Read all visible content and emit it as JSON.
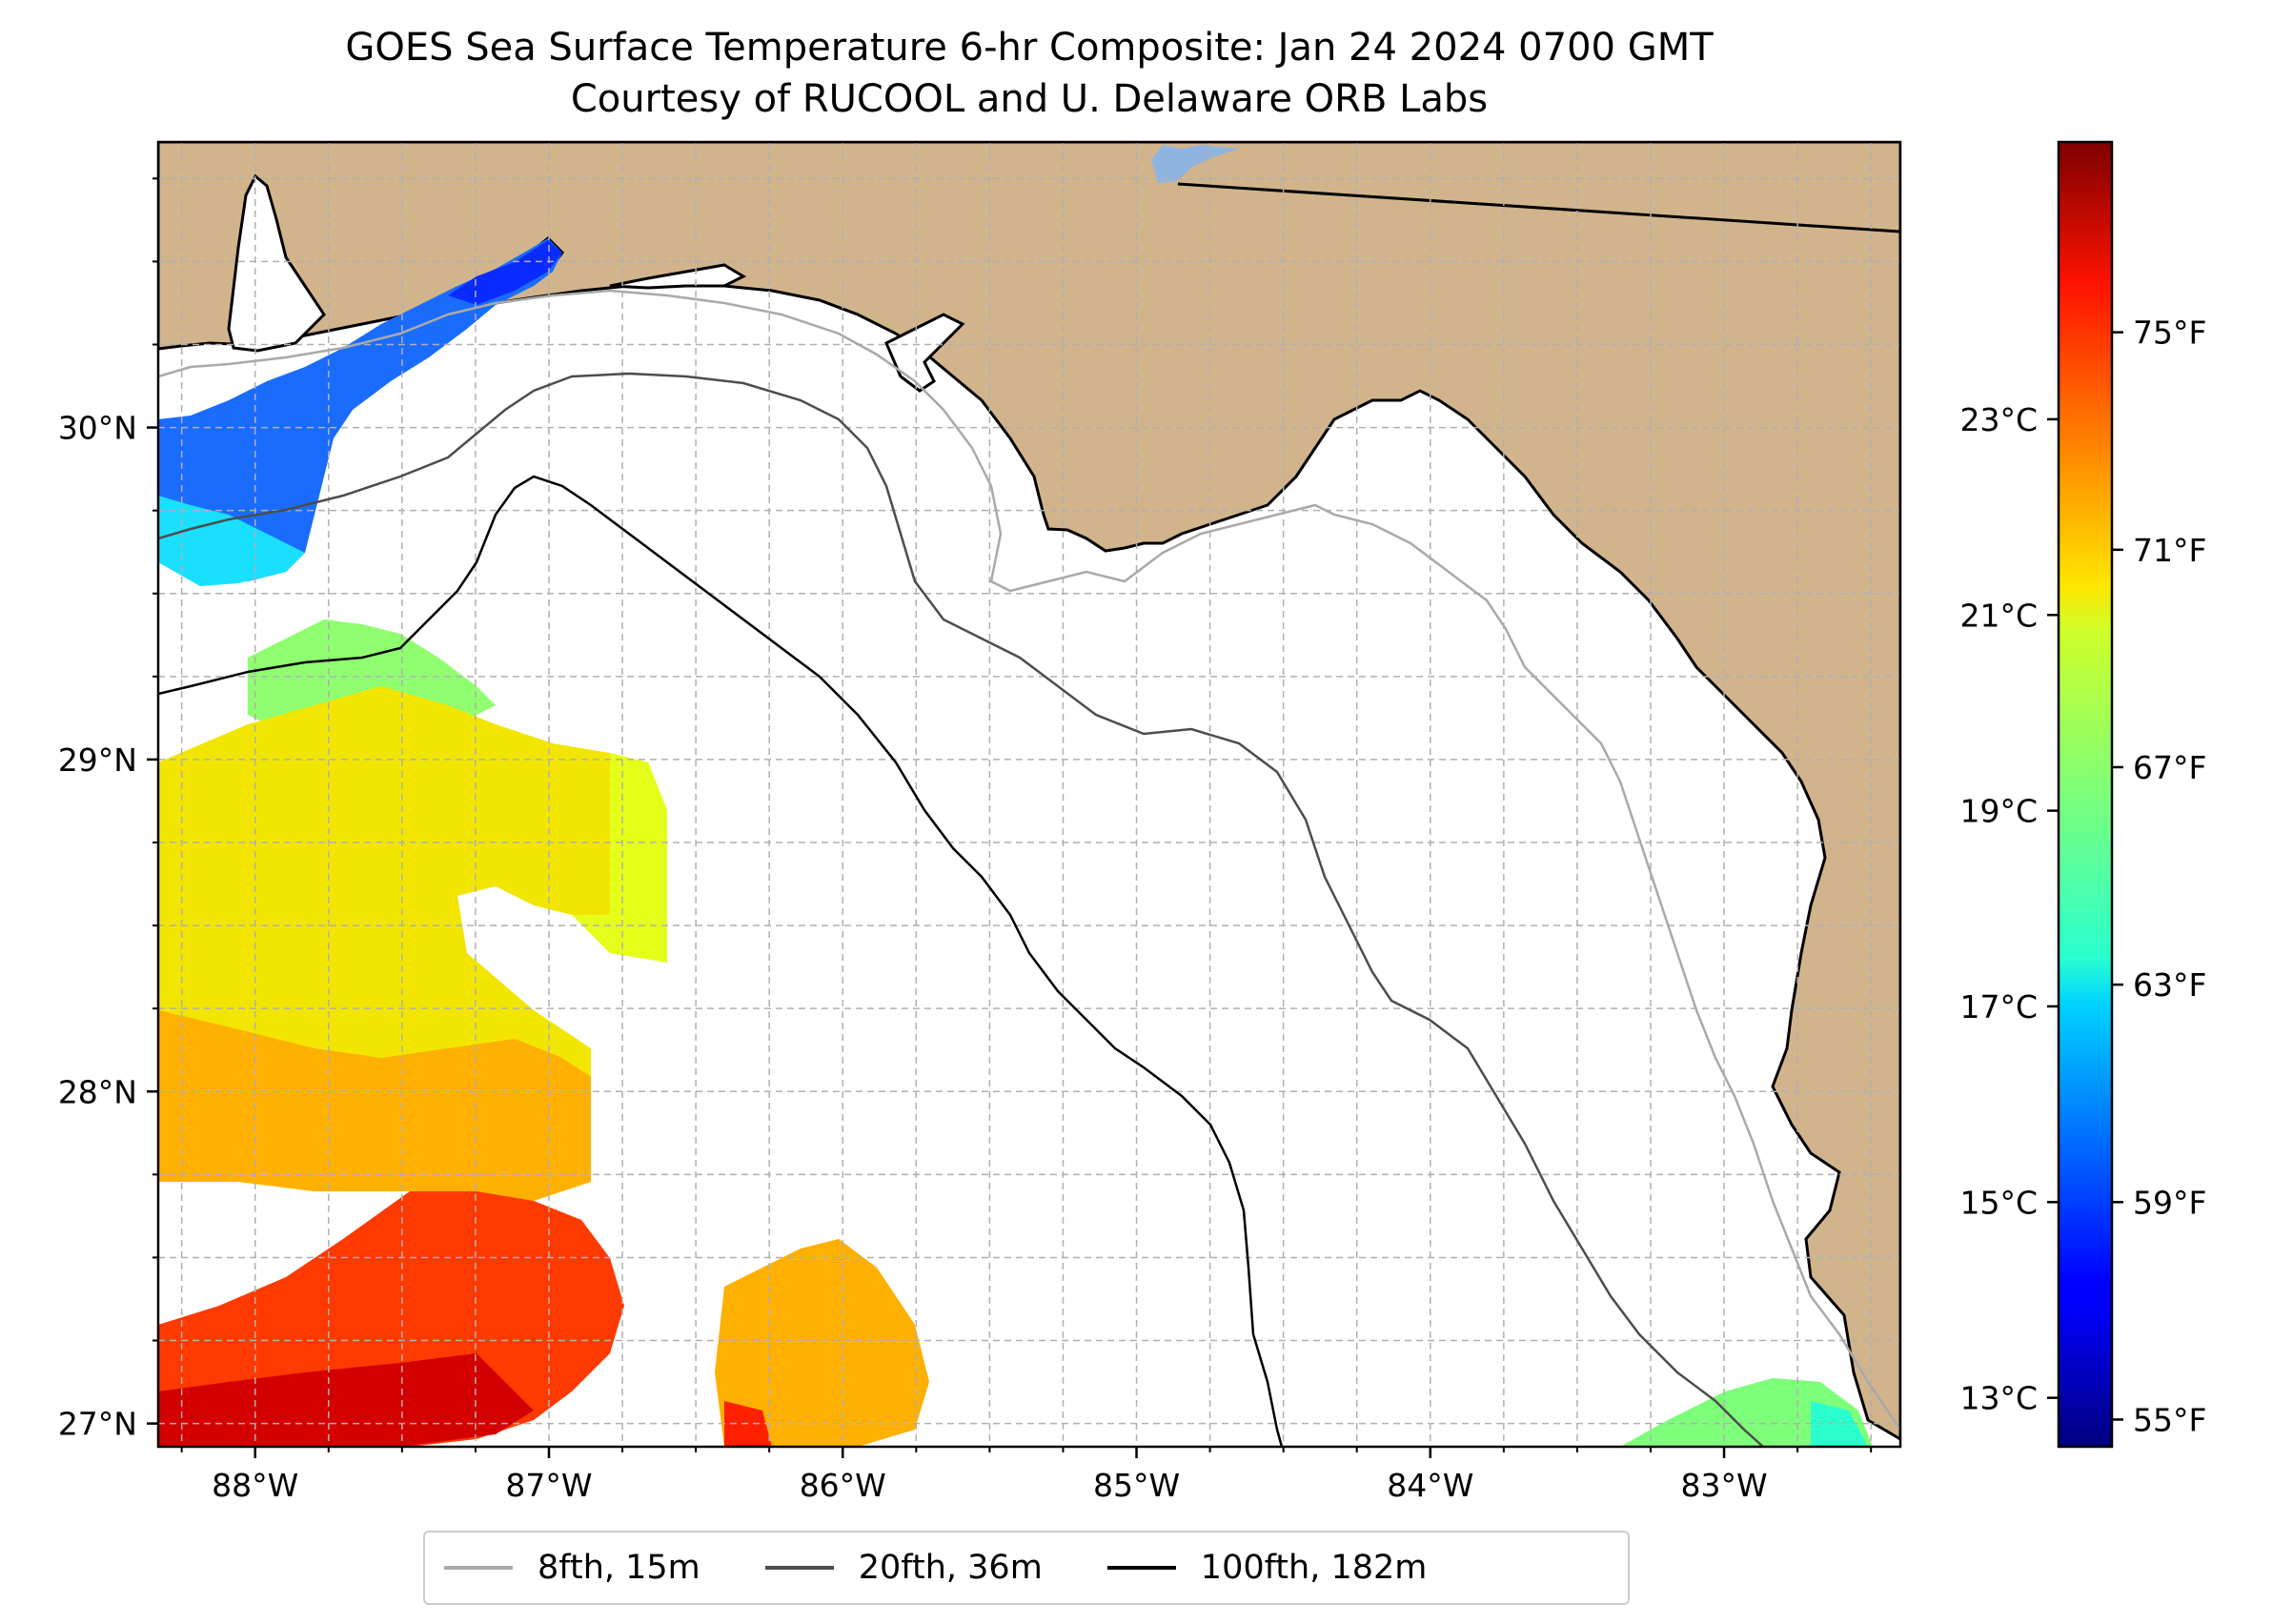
{
  "title": "GOES Sea Surface Temperature 6-hr Composite: Jan 24 2024 0700 GMT",
  "subtitle": "Courtesy of RUCOOL and U. Delaware ORB Labs",
  "map": {
    "extent": {
      "lon_min": -88.33,
      "lon_max": -82.4,
      "lat_min": 26.93,
      "lat_max": 30.86
    },
    "land_color": "#d2b48c",
    "grid": true,
    "lon_ticks": [
      {
        "value": -88,
        "label": "88°W"
      },
      {
        "value": -87,
        "label": "87°W"
      },
      {
        "value": -86,
        "label": "86°W"
      },
      {
        "value": -85,
        "label": "85°W"
      },
      {
        "value": -84,
        "label": "84°W"
      },
      {
        "value": -83,
        "label": "83°W"
      }
    ],
    "lat_ticks": [
      {
        "value": 30,
        "label": "30°N"
      },
      {
        "value": 29,
        "label": "29°N"
      },
      {
        "value": 28,
        "label": "28°N"
      },
      {
        "value": 27,
        "label": "27°N"
      }
    ]
  },
  "colorbar": {
    "colormap": "jet",
    "min_f": 54.5,
    "max_f": 78.5,
    "fahrenheit_ticks": [
      {
        "value": 55,
        "label": "55°F"
      },
      {
        "value": 59,
        "label": "59°F"
      },
      {
        "value": 63,
        "label": "63°F"
      },
      {
        "value": 67,
        "label": "67°F"
      },
      {
        "value": 71,
        "label": "71°F"
      },
      {
        "value": 75,
        "label": "75°F"
      }
    ],
    "celsius_ticks": [
      {
        "value": 13,
        "label": "13°C"
      },
      {
        "value": 15,
        "label": "15°C"
      },
      {
        "value": 17,
        "label": "17°C"
      },
      {
        "value": 19,
        "label": "19°C"
      },
      {
        "value": 21,
        "label": "21°C"
      },
      {
        "value": 23,
        "label": "23°C"
      }
    ]
  },
  "legend": {
    "position": "bottom-center",
    "items": [
      {
        "label": "8fth, 15m",
        "color": "#a9a9a9"
      },
      {
        "label": "20fth, 36m",
        "color": "#4d4d4d"
      },
      {
        "label": "100fth, 182m",
        "color": "#000000"
      }
    ]
  }
}
